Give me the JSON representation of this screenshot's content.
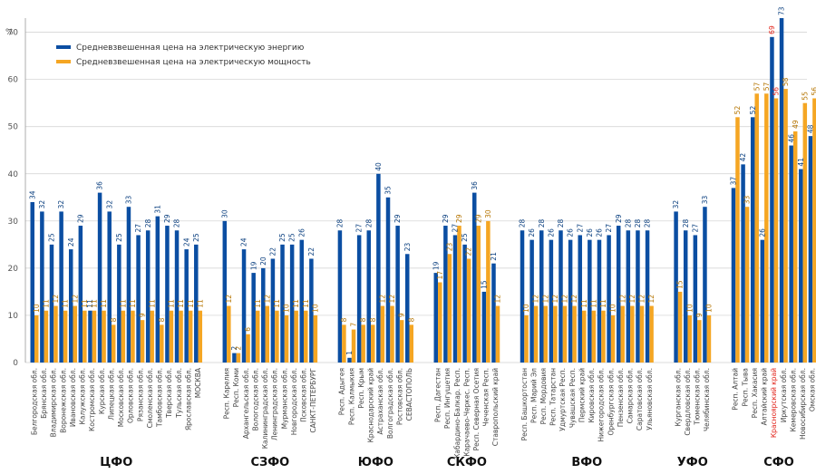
{
  "chart_data": {
    "type": "bar",
    "ylabel": "%",
    "ylim": [
      0,
      73
    ],
    "yticks": [
      0,
      10,
      20,
      30,
      40,
      50,
      60,
      70
    ],
    "grid": true,
    "legend_position": "top-left",
    "highlight_category": "Красноярский край",
    "highlight_color": "#e2231a",
    "series": [
      {
        "name": "Средневзвешенная цена на электрическую энергию",
        "color": "#0b4ea2"
      },
      {
        "name": "Средневзвешенная цена на электрическую мощность",
        "color": "#f5a623"
      }
    ],
    "groups": [
      {
        "name": "ЦФО",
        "items": [
          {
            "label": "Белгородская обл.",
            "e": 34,
            "c": 10
          },
          {
            "label": "Брянская обл.",
            "e": 32,
            "c": 11
          },
          {
            "label": "Владимирская обл.",
            "e": 25,
            "c": 12
          },
          {
            "label": "Воронежская обл.",
            "e": 32,
            "c": 11
          },
          {
            "label": "Ивановская обл.",
            "e": 24,
            "c": 12
          },
          {
            "label": "Калужская обл.",
            "e": 29,
            "c": 11
          },
          {
            "label": "Костромская обл.",
            "e": 11,
            "c": 11
          },
          {
            "label": "Курская обл.",
            "e": 36,
            "c": 11
          },
          {
            "label": "Липецкая обл.",
            "e": 32,
            "c": 8
          },
          {
            "label": "Московская обл.",
            "e": 25,
            "c": 11
          },
          {
            "label": "Орловская обл.",
            "e": 33,
            "c": 11
          },
          {
            "label": "Рязанская обл.",
            "e": 27,
            "c": 9
          },
          {
            "label": "Смоленская обл.",
            "e": 28,
            "c": 11
          },
          {
            "label": "Тамбовская обл.",
            "e": 31,
            "c": 8
          },
          {
            "label": "Тверская обл.",
            "e": 29,
            "c": 11
          },
          {
            "label": "Тульская обл.",
            "e": 28,
            "c": 11
          },
          {
            "label": "Ярославская обл.",
            "e": 24,
            "c": 11
          },
          {
            "label": "МОСКВА",
            "e": 25,
            "c": 11
          }
        ]
      },
      {
        "name": "СЗФО",
        "items": [
          {
            "label": "Респ. Карелия",
            "e": 30,
            "c": 12
          },
          {
            "label": "Респ. Коми",
            "e": 2,
            "c": 2
          },
          {
            "label": "Архангельская обл.",
            "e": 24,
            "c": 6
          },
          {
            "label": "Вологодская обл.",
            "e": 19,
            "c": 11
          },
          {
            "label": "Калининградская обл.",
            "e": 20,
            "c": 12
          },
          {
            "label": "Ленинградская обл.",
            "e": 22,
            "c": 11
          },
          {
            "label": "Мурманская обл.",
            "e": 25,
            "c": 10
          },
          {
            "label": "Новгородская обл.",
            "e": 25,
            "c": 11
          },
          {
            "label": "Псковская обл.",
            "e": 26,
            "c": 11
          },
          {
            "label": "САНКТ-ПЕТЕРБУРГ",
            "e": 22,
            "c": 10
          }
        ]
      },
      {
        "name": "ЮФО",
        "items": [
          {
            "label": "Респ. Адыгея",
            "e": 28,
            "c": 8
          },
          {
            "label": "Респ. Калмыкия",
            "e": 1,
            "c": 7
          },
          {
            "label": "Респ. Крым",
            "e": 27,
            "c": 8
          },
          {
            "label": "Краснодарский край",
            "e": 28,
            "c": 8
          },
          {
            "label": "Астраханская обл.",
            "e": 40,
            "c": 12
          },
          {
            "label": "Волгоградская обл.",
            "e": 35,
            "c": 12
          },
          {
            "label": "Ростовская обл.",
            "e": 29,
            "c": 9
          },
          {
            "label": "СЕВАСТОПОЛЬ",
            "e": 23,
            "c": 8
          }
        ]
      },
      {
        "name": "СКФО",
        "items": [
          {
            "label": "Респ. Дагестан",
            "e": 19,
            "c": 17
          },
          {
            "label": "Респ. Ингушетия",
            "e": 29,
            "c": 23
          },
          {
            "label": "Кабардино-Балкар. Респ.",
            "e": 27,
            "c": 29
          },
          {
            "label": "Карачаево-Черкес. Респ.",
            "e": 25,
            "c": 22
          },
          {
            "label": "Респ. Северная Осетия",
            "e": 36,
            "c": 29
          },
          {
            "label": "Чеченская Респ.",
            "e": 15,
            "c": 30
          },
          {
            "label": "Ставропольский край",
            "e": 21,
            "c": 12
          }
        ]
      },
      {
        "name": "ВФО",
        "items": [
          {
            "label": "Респ. Башкортостан",
            "e": 28,
            "c": 10
          },
          {
            "label": "Респ. Марий Эл",
            "e": 26,
            "c": 12
          },
          {
            "label": "Респ. Мордовия",
            "e": 28,
            "c": 12
          },
          {
            "label": "Респ. Татарстан",
            "e": 26,
            "c": 12
          },
          {
            "label": "Удмуртская Респ.",
            "e": 28,
            "c": 12
          },
          {
            "label": "Чувашская Респ.",
            "e": 26,
            "c": 12
          },
          {
            "label": "Пермский край",
            "e": 27,
            "c": 11
          },
          {
            "label": "Кировская обл.",
            "e": 26,
            "c": 11
          },
          {
            "label": "Нижегородская обл.",
            "e": 26,
            "c": 11
          },
          {
            "label": "Оренбургская обл.",
            "e": 27,
            "c": 10
          },
          {
            "label": "Пензенская обл.",
            "e": 29,
            "c": 12
          },
          {
            "label": "Самарская обл.",
            "e": 28,
            "c": 12
          },
          {
            "label": "Саратовская обл.",
            "e": 28,
            "c": 12
          },
          {
            "label": "Ульяновская обл.",
            "e": 28,
            "c": 12
          }
        ]
      },
      {
        "name": "УФО",
        "items": [
          {
            "label": "Курганская обл.",
            "e": 32,
            "c": 15
          },
          {
            "label": "Свердловская обл.",
            "e": 28,
            "c": 10
          },
          {
            "label": "Тюменская обл.",
            "e": 27,
            "c": 9
          },
          {
            "label": "Челябинская обл.",
            "e": 33,
            "c": 10
          }
        ]
      },
      {
        "name": "СФО",
        "items": [
          {
            "label": "Респ. Алтай",
            "e": 37,
            "c": 52
          },
          {
            "label": "Респ. Тыва",
            "e": 42,
            "c": 33
          },
          {
            "label": "Респ. Хакасия",
            "e": 52,
            "c": 57
          },
          {
            "label": "Алтайский край",
            "e": 26,
            "c": 57
          },
          {
            "label": "Красноярский край",
            "e": 69,
            "c": 56
          },
          {
            "label": "Иркутская обл.",
            "e": 73,
            "c": 58
          },
          {
            "label": "Кемеровская обл.",
            "e": 46,
            "c": 49
          },
          {
            "label": "Новосибирская обл.",
            "e": 41,
            "c": 55
          },
          {
            "label": "Омская обл.",
            "e": 48,
            "c": 56
          },
          {
            "label": "Томская обл.",
            "e": 43,
            "c": 36
          }
        ]
      }
    ]
  }
}
